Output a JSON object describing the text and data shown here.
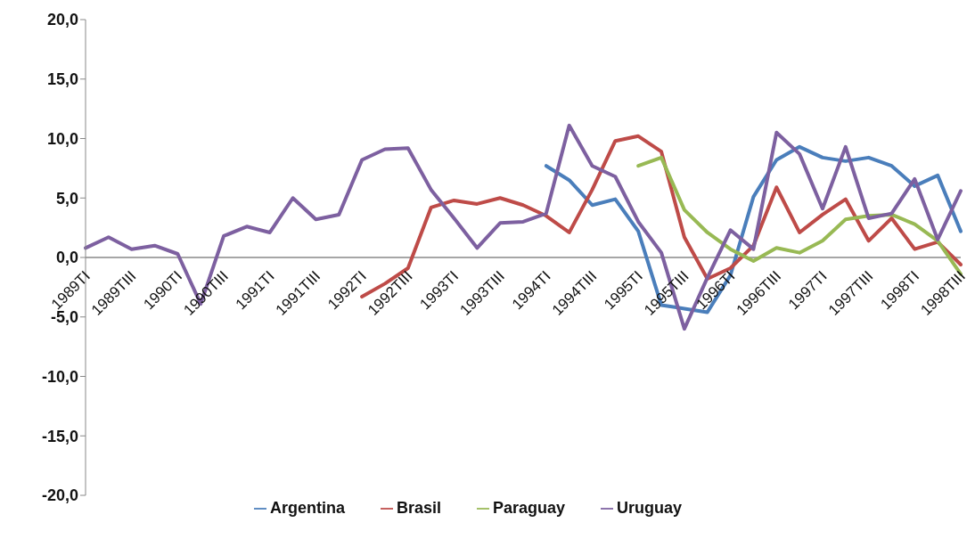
{
  "chart_data": {
    "type": "line",
    "categories": [
      "1989TI",
      null,
      "1989TIII",
      null,
      "1990TI",
      null,
      "1990TIII",
      null,
      "1991TI",
      null,
      "1991TIII",
      null,
      "1992TI",
      null,
      "1992TIII",
      null,
      "1993TI",
      null,
      "1993TIII",
      null,
      "1994TI",
      null,
      "1994TIII",
      null,
      "1995TI",
      null,
      "1995TIII",
      null,
      "1996TI",
      null,
      "1996TIII",
      null,
      "1997TI",
      null,
      "1997TIII",
      null,
      "1998TI",
      null,
      "1998TIII"
    ],
    "series": [
      {
        "name": "Argentina",
        "color": "#4a7ebb",
        "values": [
          null,
          null,
          null,
          null,
          null,
          null,
          null,
          null,
          null,
          null,
          null,
          null,
          null,
          null,
          null,
          null,
          null,
          null,
          null,
          null,
          7.7,
          6.5,
          4.4,
          4.9,
          2.2,
          -4.0,
          -4.3,
          -4.6,
          -1.5,
          5.1,
          8.2,
          9.3,
          8.4,
          8.1,
          8.4,
          7.7,
          6.0,
          6.9,
          2.2
        ]
      },
      {
        "name": "Brasil",
        "color": "#be4b48",
        "values": [
          null,
          null,
          null,
          null,
          null,
          null,
          null,
          null,
          null,
          null,
          null,
          null,
          -3.3,
          -2.2,
          -0.9,
          4.2,
          4.8,
          4.5,
          5.0,
          4.4,
          3.5,
          2.1,
          5.7,
          9.8,
          10.2,
          8.9,
          1.7,
          -1.8,
          -0.9,
          1.0,
          5.9,
          2.1,
          3.6,
          4.9,
          1.4,
          3.3,
          0.7,
          1.3,
          -0.6
        ]
      },
      {
        "name": "Paraguay",
        "color": "#98b954",
        "values": [
          null,
          null,
          null,
          null,
          null,
          null,
          null,
          null,
          null,
          null,
          null,
          null,
          null,
          null,
          null,
          null,
          null,
          null,
          null,
          null,
          null,
          null,
          null,
          null,
          7.7,
          8.4,
          4.0,
          2.1,
          0.7,
          -0.3,
          0.8,
          0.4,
          1.4,
          3.2,
          3.5,
          3.6,
          2.8,
          1.4,
          -1.4
        ]
      },
      {
        "name": "Uruguay",
        "color": "#7d60a0",
        "values": [
          0.8,
          1.7,
          0.7,
          1.0,
          0.3,
          -3.9,
          1.8,
          2.6,
          2.1,
          5.0,
          3.2,
          3.6,
          8.2,
          9.1,
          9.2,
          5.7,
          3.3,
          0.8,
          2.9,
          3.0,
          3.7,
          11.1,
          7.7,
          6.8,
          3.0,
          0.4,
          -6.0,
          -1.7,
          2.3,
          0.7,
          10.5,
          8.7,
          4.1,
          9.3,
          3.3,
          3.7,
          6.6,
          1.5,
          5.6
        ]
      }
    ],
    "ylim": [
      -20,
      20
    ],
    "yticks": [
      {
        "value": -20,
        "label": "-20,0"
      },
      {
        "value": -15,
        "label": "-15,0"
      },
      {
        "value": -10,
        "label": "-10,0"
      },
      {
        "value": -5,
        "label": "-5,0"
      },
      {
        "value": 0,
        "label": "0,0"
      },
      {
        "value": 5,
        "label": "5,0"
      },
      {
        "value": 10,
        "label": "10,0"
      },
      {
        "value": 15,
        "label": "15,0"
      },
      {
        "value": 20,
        "label": "20,0"
      }
    ],
    "grid": false,
    "legend": "bottom",
    "marker": "none",
    "line_style": "solid"
  }
}
